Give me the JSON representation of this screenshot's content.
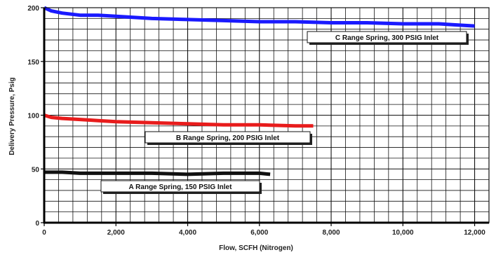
{
  "chart_data": {
    "type": "line",
    "title": "",
    "xlabel": "Flow, SCFH (Nitrogen)",
    "ylabel": "Delivery Pressure, Psig",
    "xlim": [
      0,
      12400
    ],
    "ylim": [
      0,
      200
    ],
    "grid": true,
    "x_ticks": [
      {
        "value": 0,
        "label": "0"
      },
      {
        "value": 2000,
        "label": "2,000"
      },
      {
        "value": 4000,
        "label": "4,000"
      },
      {
        "value": 6000,
        "label": "6,000"
      },
      {
        "value": 8000,
        "label": "8,000"
      },
      {
        "value": 10000,
        "label": "10,000"
      },
      {
        "value": 12000,
        "label": "12,000"
      }
    ],
    "y_ticks": [
      {
        "value": 0,
        "label": "0"
      },
      {
        "value": 50,
        "label": "50"
      },
      {
        "value": 100,
        "label": "100"
      },
      {
        "value": 150,
        "label": "150"
      },
      {
        "value": 200,
        "label": "200"
      }
    ],
    "series": [
      {
        "name": "C Range Spring, 300 PSIG Inlet",
        "color": "#1a1aff",
        "x": [
          0,
          200,
          500,
          1000,
          1500,
          2000,
          3000,
          4000,
          5000,
          6000,
          7000,
          8000,
          9000,
          10000,
          11000,
          11500,
          12000
        ],
        "y": [
          200,
          197,
          195,
          193,
          193,
          192,
          190,
          189,
          188,
          187,
          187,
          186,
          186,
          185,
          185,
          184,
          183
        ]
      },
      {
        "name": "B Range Spring, 200 PSIG Inlet",
        "color": "#e81c1c",
        "x": [
          0,
          200,
          500,
          1000,
          1500,
          2000,
          3000,
          4000,
          5000,
          6000,
          7000,
          7500
        ],
        "y": [
          100,
          98,
          97,
          96,
          95,
          94,
          93,
          92,
          91,
          91,
          90,
          90
        ]
      },
      {
        "name": "A Range Spring, 150 PSIG Inlet",
        "color": "#111111",
        "x": [
          0,
          500,
          1000,
          2000,
          3000,
          4000,
          5000,
          6000,
          6300
        ],
        "y": [
          47,
          47,
          46,
          46,
          46,
          45,
          46,
          46,
          45
        ]
      }
    ],
    "annotations": [
      {
        "series": 0,
        "label": "C Range Spring, 300 PSIG Inlet"
      },
      {
        "series": 1,
        "label": "B Range Spring, 200 PSIG Inlet"
      },
      {
        "series": 2,
        "label": "A Range Spring, 150 PSIG Inlet"
      }
    ]
  }
}
